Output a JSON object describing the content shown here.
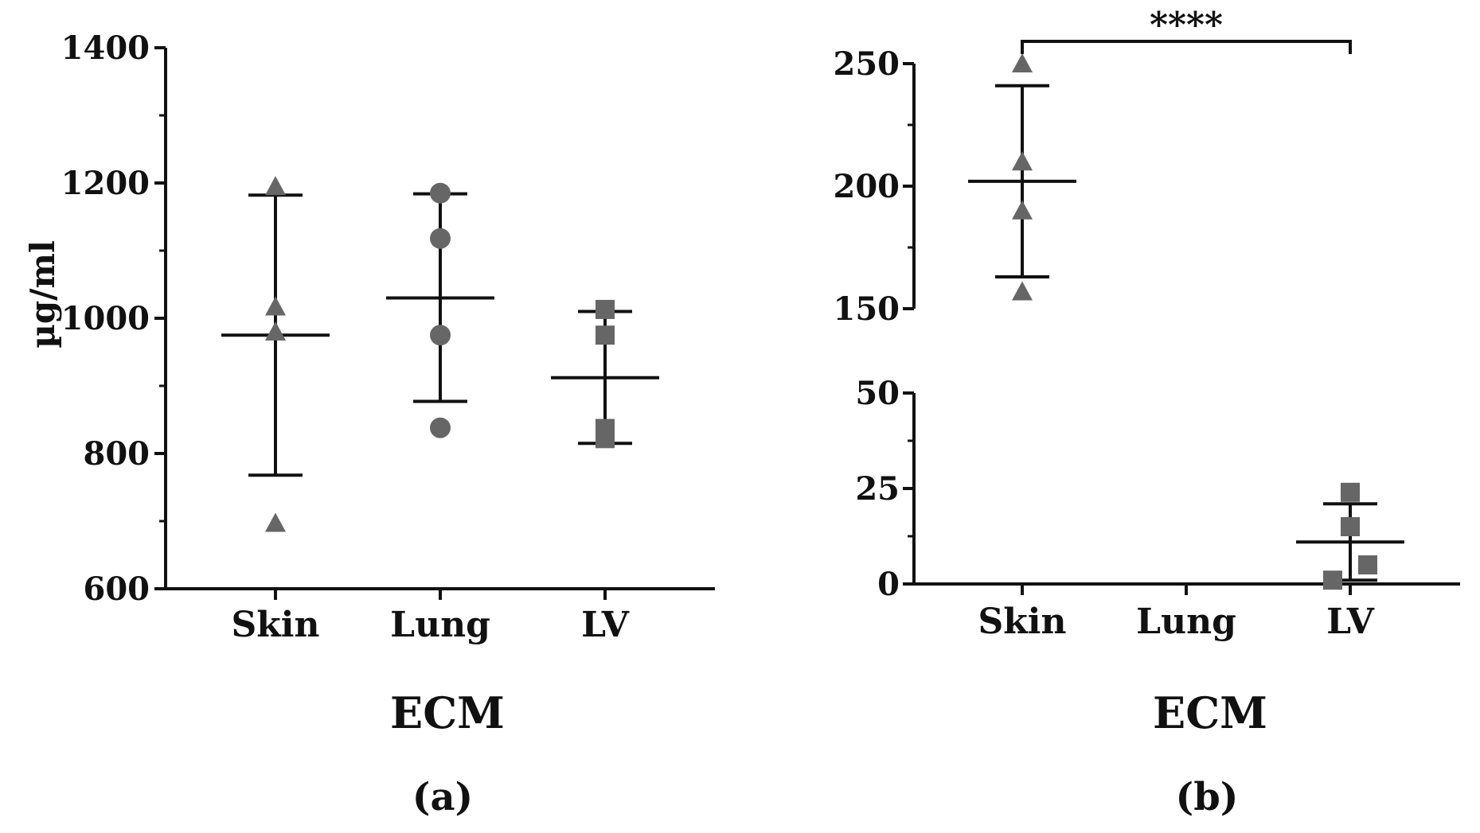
{
  "colors": {
    "axis": "#111111",
    "marker": "#666666"
  },
  "chart_data": [
    {
      "type": "scatter",
      "panel_label": "(a)",
      "xlabel": "ECM",
      "ylabel": "µg/ml",
      "categories": [
        "Skin",
        "Lung",
        "LV"
      ],
      "ylim": [
        600,
        1400
      ],
      "yticks": [
        600,
        800,
        1000,
        1200,
        1400
      ],
      "series": [
        {
          "name": "Skin",
          "marker": "triangle",
          "points": [
            1195,
            1017,
            980,
            697
          ],
          "mean": 975,
          "err_low": 768,
          "err_high": 1182
        },
        {
          "name": "Lung",
          "marker": "circle",
          "points": [
            1185,
            1118,
            975,
            838
          ],
          "mean": 1030,
          "err_low": 877,
          "err_high": 1184
        },
        {
          "name": "LV",
          "marker": "square",
          "points": [
            1013,
            975,
            837,
            822
          ],
          "mean": 912,
          "err_low": 815,
          "err_high": 1010
        }
      ]
    },
    {
      "type": "scatter",
      "panel_label": "(b)",
      "xlabel": "ECM",
      "ylabel": "",
      "categories": [
        "Skin",
        "Lung",
        "LV"
      ],
      "broken_axis": true,
      "upper_ylim": [
        150,
        250
      ],
      "upper_yticks": [
        150,
        200,
        250
      ],
      "lower_ylim": [
        0,
        50
      ],
      "lower_yticks": [
        0,
        25,
        50
      ],
      "significance": {
        "label": "****",
        "from": "Skin",
        "to": "LV"
      },
      "series": [
        {
          "name": "Skin",
          "marker": "triangle",
          "points": [
            250,
            210,
            190,
            157
          ],
          "mean": 202,
          "err_low": 163,
          "err_high": 241
        },
        {
          "name": "Lung",
          "marker": "circle",
          "points": [],
          "mean": null,
          "err_low": null,
          "err_high": null
        },
        {
          "name": "LV",
          "marker": "square",
          "points": [
            24,
            15,
            5,
            1
          ],
          "mean": 11,
          "err_low": 1,
          "err_high": 21
        }
      ]
    }
  ]
}
